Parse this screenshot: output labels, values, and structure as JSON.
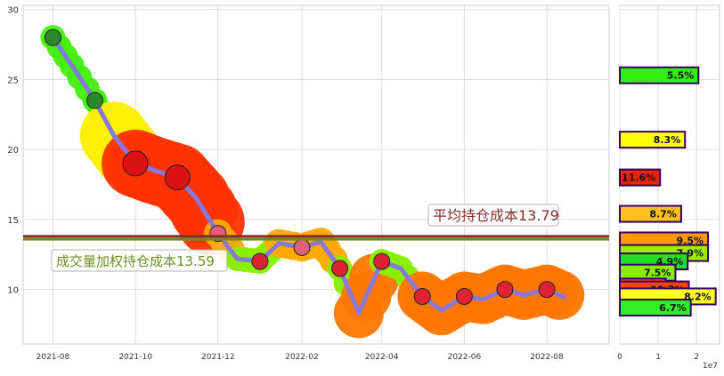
{
  "chart_data": [
    {
      "type": "line",
      "xlim": [
        "2021-07-10",
        "2022-09-16"
      ],
      "ylim": [
        6.1,
        30.3
      ],
      "grid": true,
      "x_ticks": [
        "2021-08",
        "2021-10",
        "2021-12",
        "2022-02",
        "2022-04",
        "2022-06",
        "2022-08"
      ],
      "y_ticks": [
        10,
        15,
        20,
        25,
        30
      ],
      "series": [
        {
          "color": "#8877dd",
          "points": [
            [
              "2021-08-01",
              28
            ],
            [
              "2021-08-15",
              26
            ],
            [
              "2021-09-01",
              23.5
            ],
            [
              "2021-09-15",
              21
            ],
            [
              "2021-10-01",
              19
            ],
            [
              "2021-10-15",
              18.5
            ],
            [
              "2021-11-01",
              18
            ],
            [
              "2021-11-15",
              16.5
            ],
            [
              "2021-12-01",
              14
            ],
            [
              "2021-12-15",
              12.2
            ],
            [
              "2022-01-01",
              12
            ],
            [
              "2022-01-15",
              13.3
            ],
            [
              "2022-02-01",
              13
            ],
            [
              "2022-02-15",
              13.4
            ],
            [
              "2022-03-01",
              11.5
            ],
            [
              "2022-03-15",
              8.3
            ],
            [
              "2022-04-01",
              12
            ],
            [
              "2022-04-15",
              11.5
            ],
            [
              "2022-05-01",
              9.5
            ],
            [
              "2022-05-15",
              8.5
            ],
            [
              "2022-06-01",
              9.5
            ],
            [
              "2022-06-15",
              9.3
            ],
            [
              "2022-07-01",
              10
            ],
            [
              "2022-07-15",
              9.6
            ],
            [
              "2022-08-01",
              10
            ],
            [
              "2022-08-15",
              9.4
            ]
          ]
        }
      ],
      "hlines": [
        {
          "value": 13.79,
          "color": "#8b2a2a",
          "label": "平均持仓成本13.79"
        },
        {
          "value": 13.59,
          "color": "#6b8e23",
          "label": "成交量加权持仓成本13.59"
        }
      ]
    },
    {
      "type": "bar",
      "orientation": "horizontal",
      "xlim": [
        0,
        26000000
      ],
      "x_ticks": [
        "0",
        "1",
        "2"
      ],
      "x_offset_label": "1e7",
      "bars": [
        {
          "price": 25.3,
          "value": 20500000,
          "label": "5.5%",
          "color": "#33ee11"
        },
        {
          "price": 20.7,
          "value": 17000000,
          "label": "8.3%",
          "color": "#ffff00"
        },
        {
          "price": 18.0,
          "value": 10500000,
          "label": "11.6%",
          "color": "#ee2200"
        },
        {
          "price": 15.4,
          "value": 16000000,
          "label": "8.7%",
          "color": "#ffc020"
        },
        {
          "price": 13.5,
          "value": 23000000,
          "label": "9.5%",
          "color": "#ff9900"
        },
        {
          "price": 12.6,
          "value": 23000000,
          "label": "7.9%",
          "color": "#99ee00"
        },
        {
          "price": 12.0,
          "value": 17700000,
          "label": "4.9%",
          "color": "#22dd22"
        },
        {
          "price": 11.2,
          "value": 14500000,
          "label": "7.5%",
          "color": "#88ee00"
        },
        {
          "price": 10.2,
          "value": 12000000,
          "label": "10.6%",
          "color": "#ff6600"
        },
        {
          "price": 10.0,
          "value": 18000000,
          "label": "10.7%",
          "color": "#ff4400"
        },
        {
          "price": 9.5,
          "value": 25000000,
          "label": "8.2%",
          "color": "#ffff22"
        },
        {
          "price": 8.7,
          "value": 18500000,
          "label": "6.7%",
          "color": "#33ee22"
        }
      ]
    }
  ]
}
